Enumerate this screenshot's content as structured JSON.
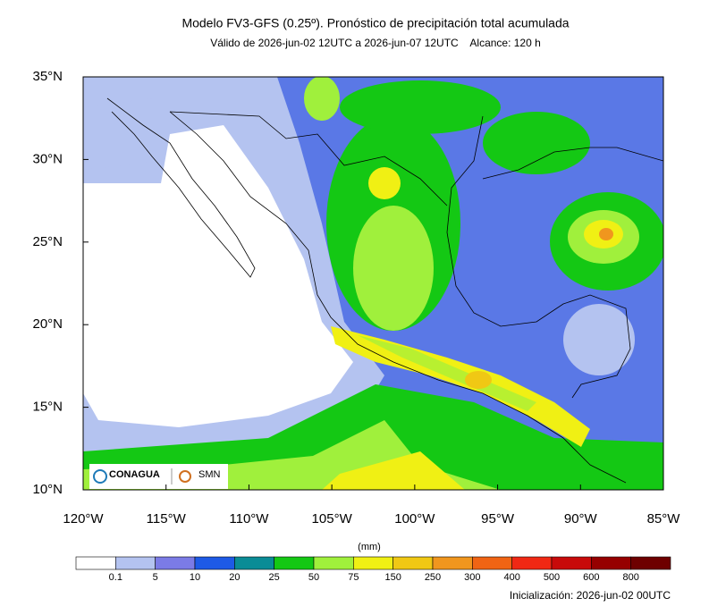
{
  "map": {
    "title": "Modelo FV3-GFS (0.25º). Pronóstico de precipitación total acumulada",
    "subtitle": "Válido de 2026-jun-02 12UTC a 2026-jun-07 12UTC    Alcance: 120 h",
    "lon_ticks": [
      {
        "value": -120,
        "label": "120°W"
      },
      {
        "value": -115,
        "label": "115°W"
      },
      {
        "value": -110,
        "label": "110°W"
      },
      {
        "value": -105,
        "label": "105°W"
      },
      {
        "value": -100,
        "label": "100°W"
      },
      {
        "value": -95,
        "label": "95°W"
      },
      {
        "value": -90,
        "label": "90°W"
      },
      {
        "value": -85,
        "label": "85°W"
      }
    ],
    "lat_ticks": [
      {
        "value": 35,
        "label": "35°N"
      },
      {
        "value": 30,
        "label": "30°N"
      },
      {
        "value": 25,
        "label": "25°N"
      },
      {
        "value": 20,
        "label": "20°N"
      },
      {
        "value": 15,
        "label": "15°N"
      },
      {
        "value": 10,
        "label": "10°N"
      }
    ],
    "lonlim": [
      -120,
      -85
    ],
    "latlim": [
      10,
      35
    ],
    "colorbar": {
      "units": "(mm)",
      "levels": [
        0.1,
        5,
        10,
        20,
        25,
        50,
        75,
        150,
        250,
        300,
        400,
        500,
        600,
        800
      ],
      "colors": [
        "#ffffff",
        "#b4c3f0",
        "#7b7be6",
        "#1e5ae6",
        "#0a8c96",
        "#14c814",
        "#a0f03c",
        "#f0f014",
        "#f0c814",
        "#f0961e",
        "#f06414",
        "#f02814",
        "#c80a0a",
        "#960000",
        "#6e0000"
      ]
    },
    "logos": [
      "CONAGUA",
      "SMN"
    ],
    "footer": "Inicialización: 2026-jun-02 00UTC"
  }
}
